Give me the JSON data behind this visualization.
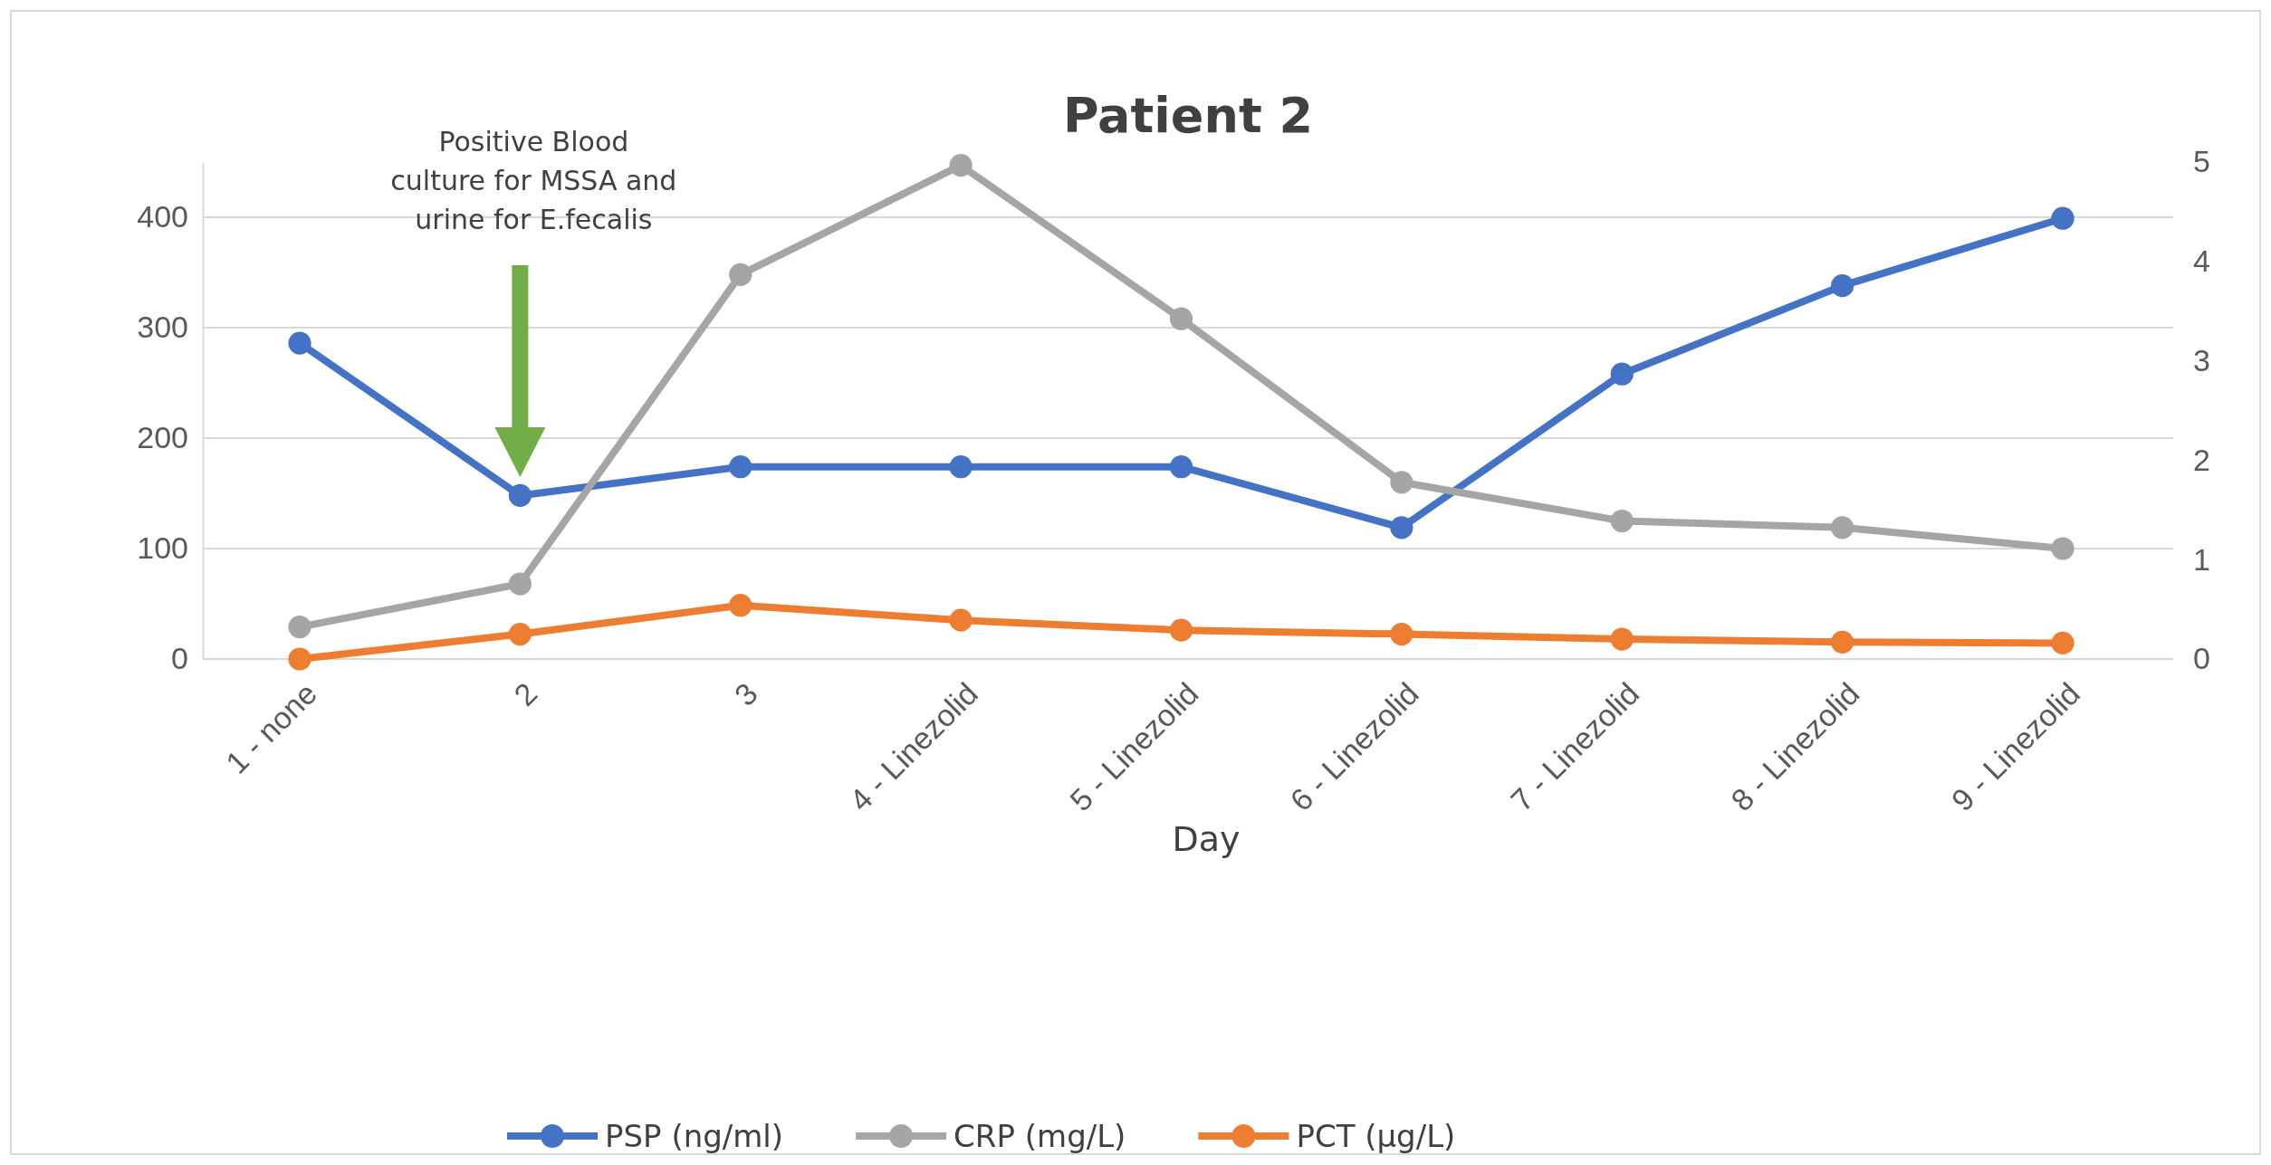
{
  "chart_data": {
    "type": "line",
    "title": "Patient 2",
    "xlabel": "Day",
    "categories": [
      "1 - none",
      "2",
      "3",
      "4 - Linezolid",
      "5 - Linezolid",
      "6 - Linezolid",
      "7 - Linezolid",
      "8 - Linezolid",
      "9 - Linezolid"
    ],
    "series": [
      {
        "name": "PSP (ng/ml)",
        "color": "#4472c4",
        "values": [
          286,
          148,
          174,
          174,
          174,
          119,
          258,
          338,
          399
        ]
      },
      {
        "name": "CRP (mg/L)",
        "color": "#a5a5a5",
        "values": [
          29,
          68,
          348,
          447,
          308,
          160,
          125,
          119,
          100
        ]
      },
      {
        "name": "PCT (µg/L)",
        "color": "#ed7d31",
        "axis": "y2",
        "values": [
          0,
          0.25,
          0.54,
          0.39,
          0.29,
          0.25,
          0.2,
          0.17,
          0.16
        ]
      }
    ],
    "ylim": [
      0,
      450
    ],
    "yticks": [
      0,
      100,
      200,
      300,
      400
    ],
    "y2lim": [
      0,
      5
    ],
    "y2ticks": [
      0,
      1,
      2,
      3,
      4,
      5
    ],
    "grid": "y",
    "legend": "bottom",
    "marker": "circle",
    "line_style": "solid",
    "annotations": [
      "Positive Blood culture for MSSA and urine for E.fecalis"
    ]
  }
}
